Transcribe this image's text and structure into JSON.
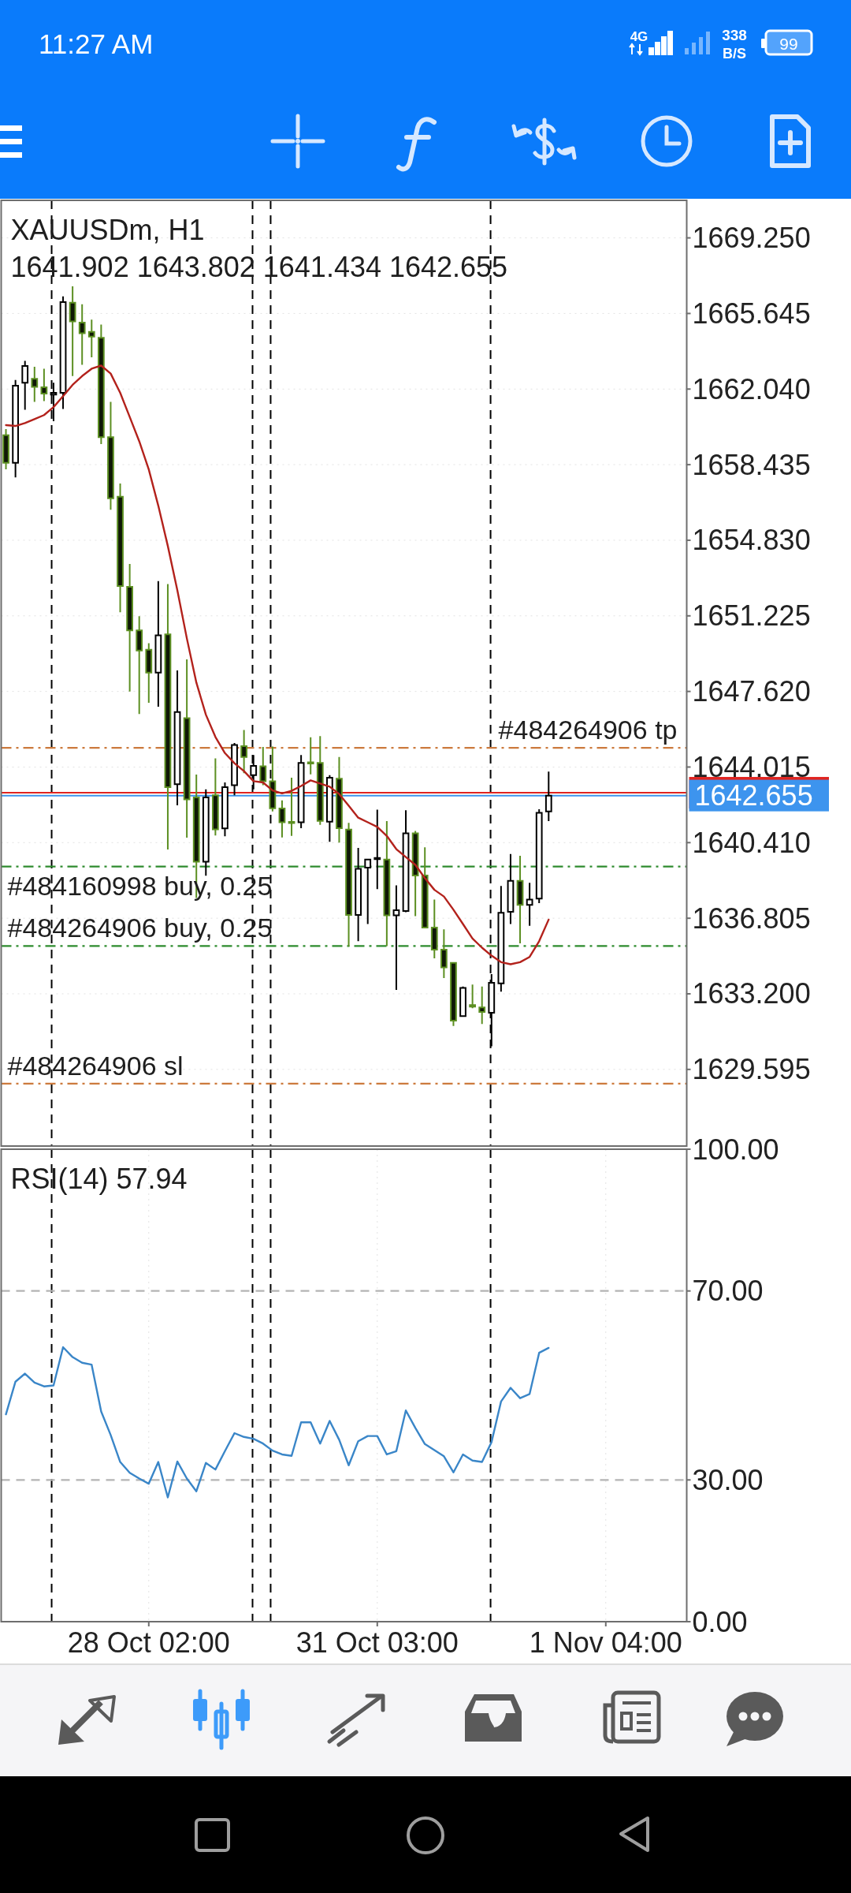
{
  "chart_data": [
    {
      "type": "other",
      "annotations": [
        "11:27 AM",
        "4G",
        "338",
        "B/S",
        "99"
      ]
    },
    {
      "type": "candlestick",
      "title": "XAUUSDm, H1",
      "subtitle": "1641.902 1643.802 1641.434 1642.655",
      "categories": [
        null,
        null,
        null,
        null,
        null,
        null,
        null,
        null,
        null,
        null,
        null,
        null,
        null,
        null,
        null,
        null,
        null,
        null,
        null,
        null,
        null,
        null,
        null,
        null,
        null,
        null,
        null,
        null,
        null,
        null,
        null,
        null,
        null,
        null,
        null,
        null,
        null,
        null,
        null,
        null,
        null,
        null,
        null,
        null,
        null,
        null,
        null,
        null,
        null,
        null,
        null,
        null,
        null,
        null,
        null,
        null,
        null,
        null,
        null,
        null,
        null,
        null,
        null,
        null,
        null,
        null,
        null,
        null,
        null,
        null,
        null,
        null
      ],
      "ohlc": [
        [
          1659.84,
          1660.13,
          1658.21,
          1658.52
        ],
        [
          1658.52,
          1662.47,
          1657.83,
          1662.2
        ],
        [
          1662.34,
          1663.39,
          1661.05,
          1663.14
        ],
        [
          1662.53,
          1663.1,
          1661.43,
          1662.14
        ],
        [
          1662.13,
          1663.01,
          1661.47,
          1661.82
        ],
        [
          1661.78,
          1662.34,
          1660.51,
          1661.86
        ],
        [
          1661.86,
          1666.46,
          1661.09,
          1666.19
        ],
        [
          1666.16,
          1666.94,
          1662.66,
          1665.27
        ],
        [
          1665.21,
          1666.08,
          1663.2,
          1664.7
        ],
        [
          1664.77,
          1665.35,
          1663.55,
          1664.54
        ],
        [
          1664.49,
          1665.12,
          1659.42,
          1659.75
        ],
        [
          1659.75,
          1661.43,
          1656.29,
          1656.83
        ],
        [
          1656.91,
          1657.54,
          1651.4,
          1652.65
        ],
        [
          1652.61,
          1653.7,
          1647.62,
          1650.53
        ],
        [
          1650.53,
          1651.21,
          1646.54,
          1649.57
        ],
        [
          1649.61,
          1649.92,
          1647.08,
          1648.52
        ],
        [
          1648.52,
          1652.88,
          1646.89,
          1650.3
        ],
        [
          1650.34,
          1652.74,
          1640.08,
          1643.05
        ],
        [
          1643.2,
          1648.62,
          1642.19,
          1646.64
        ],
        [
          1646.35,
          1649.15,
          1640.65,
          1642.47
        ],
        [
          1642.57,
          1643.66,
          1637.77,
          1639.5
        ],
        [
          1639.5,
          1642.95,
          1638.83,
          1642.57
        ],
        [
          1642.67,
          1644.43,
          1640.75,
          1641.04
        ],
        [
          1641.09,
          1643.28,
          1640.71,
          1643.05
        ],
        [
          1643.15,
          1645.16,
          1642.67,
          1645.07
        ],
        [
          1645.01,
          1645.78,
          1643.72,
          1644.49
        ],
        [
          1643.63,
          1644.59,
          1642.95,
          1644.07
        ],
        [
          1644.05,
          1644.97,
          1643.15,
          1643.34
        ],
        [
          1643.34,
          1644.99,
          1641.9,
          1642.05
        ],
        [
          1642.04,
          1642.42,
          1640.66,
          1641.38
        ],
        [
          1641.4,
          1643.51,
          1640.73,
          1641.35
        ],
        [
          1641.38,
          1644.59,
          1641.1,
          1644.21
        ],
        [
          1644.24,
          1645.43,
          1643.67,
          1644.19
        ],
        [
          1644.21,
          1645.49,
          1641.26,
          1641.45
        ],
        [
          1641.41,
          1643.63,
          1640.45,
          1643.51
        ],
        [
          1643.46,
          1644.49,
          1640.41,
          1641.1
        ],
        [
          1641.03,
          1641.35,
          1635.46,
          1636.96
        ],
        [
          1636.96,
          1640.16,
          1635.71,
          1639.16
        ],
        [
          1639.22,
          1639.62,
          1636.53,
          1639.6
        ],
        [
          1639.63,
          1641.98,
          1638.19,
          1639.68
        ],
        [
          1639.6,
          1641.44,
          1635.48,
          1636.94
        ],
        [
          1636.94,
          1638.37,
          1633.39,
          1637.19
        ],
        [
          1637.15,
          1641.95,
          1637.09,
          1640.85
        ],
        [
          1640.85,
          1640.97,
          1636.9,
          1638.84
        ],
        [
          1638.84,
          1640.19,
          1636.34,
          1636.36
        ],
        [
          1636.36,
          1637.69,
          1634.89,
          1635.31
        ],
        [
          1635.31,
          1636.27,
          1633.95,
          1634.46
        ],
        [
          1634.68,
          1634.71,
          1631.67,
          1631.92
        ],
        [
          1632.14,
          1633.55,
          1632.1,
          1633.48
        ],
        [
          1632.66,
          1633.64,
          1632.51,
          1632.59
        ],
        [
          1632.55,
          1633.55,
          1631.76,
          1632.33
        ],
        [
          1632.3,
          1634.14,
          1630.7,
          1633.73
        ],
        [
          1633.7,
          1638.34,
          1633.3,
          1637.06
        ],
        [
          1637.11,
          1639.87,
          1636.53,
          1638.59
        ],
        [
          1638.59,
          1639.78,
          1635.61,
          1637.44
        ],
        [
          1637.44,
          1638.49,
          1636.44,
          1637.69
        ],
        [
          1637.74,
          1642.0,
          1637.53,
          1641.83
        ],
        [
          1641.902,
          1643.802,
          1641.434,
          1642.655
        ],
        null,
        null,
        null,
        null,
        null,
        null,
        null,
        null,
        null,
        null,
        null,
        null,
        null,
        null
      ],
      "colors": [
        "#5c8f22",
        "#000000",
        "#000000",
        "#5c8f22",
        "#5c8f22",
        "#000000",
        "#000000",
        "#5c8f22",
        "#5c8f22",
        "#5c8f22",
        "#5c8f22",
        "#5c8f22",
        "#5c8f22",
        "#5c8f22",
        "#5c8f22",
        "#5c8f22",
        "#000000",
        "#5c8f22",
        "#000000",
        "#5c8f22",
        "#5c8f22",
        "#000000",
        "#5c8f22",
        "#000000",
        "#000000",
        "#5c8f22",
        "#000000",
        "#5c8f22",
        "#5c8f22",
        "#5c8f22",
        "#5c8f22",
        "#000000",
        "#5c8f22",
        "#5c8f22",
        "#000000",
        "#5c8f22",
        "#5c8f22",
        "#000000",
        "#000000",
        "#000000",
        "#5c8f22",
        "#000000",
        "#000000",
        "#5c8f22",
        "#5c8f22",
        "#5c8f22",
        "#5c8f22",
        "#5c8f22",
        "#000000",
        "#5c8f22",
        "#5c8f22",
        "#000000",
        "#000000",
        "#000000",
        "#5c8f22",
        "#000000",
        "#000000",
        "#000000",
        null,
        null,
        null,
        null,
        null,
        null,
        null,
        null,
        null,
        null,
        null,
        null,
        null,
        null
      ],
      "series": [
        {
          "type": "line",
          "color": "#b3221c",
          "values": [
            1660.32,
            1660.28,
            1660.42,
            1660.61,
            1660.8,
            1661.18,
            1661.7,
            1662.24,
            1662.66,
            1663.01,
            1663.16,
            1662.78,
            1661.86,
            1660.71,
            1659.55,
            1658.21,
            1656.48,
            1654.56,
            1652.45,
            1650.15,
            1648.04,
            1646.51,
            1645.45,
            1644.68,
            1644.2,
            1643.82,
            1643.34,
            1643.28,
            1642.9,
            1642.76,
            1642.88,
            1643.11,
            1643.38,
            1643.23,
            1643.08,
            1642.73,
            1642.17,
            1641.6,
            1641.38,
            1641.16,
            1640.73,
            1640.1,
            1639.72,
            1639.35,
            1638.72,
            1638.16,
            1637.84,
            1637.21,
            1636.53,
            1635.84,
            1635.4,
            1635.02,
            1634.71,
            1634.61,
            1634.71,
            1634.96,
            1635.71,
            1636.74,
            null,
            null,
            null,
            null,
            null,
            null,
            null,
            null,
            null,
            null,
            null,
            null,
            null,
            null
          ]
        }
      ],
      "ylim": [
        1625.94,
        1671.04
      ],
      "yticks": [
        {
          "value": 1669.25,
          "label": "1669.250"
        },
        1665.645,
        {
          "value": 1662.04,
          "label": "1662.040"
        },
        1658.435,
        {
          "value": 1654.83,
          "label": "1654.830"
        },
        1651.225,
        {
          "value": 1647.62,
          "label": "1647.620"
        },
        1644.015,
        {
          "value": 1640.41,
          "label": "1640.410"
        },
        1636.805,
        {
          "value": 1633.2,
          "label": "1633.200"
        },
        1629.595
      ],
      "grid": true,
      "ref_lines": [
        {
          "axis": "y",
          "value": 1644.93,
          "label": "#484264906 tp",
          "color": "#cc7a3d",
          "line_style": "dotted"
        },
        {
          "axis": "y",
          "value": 1642.79,
          "color": "#e0241f"
        },
        {
          "axis": "y",
          "value": 1642.655,
          "label": "1642.655",
          "color": "#3d94ee"
        },
        {
          "axis": "y",
          "value": 1639.27,
          "label": "#484160998 buy, 0.25",
          "color": "#2e8b2e",
          "line_style": "dotted"
        },
        {
          "axis": "y",
          "value": 1635.48,
          "label": "#484264906 buy, 0.25",
          "color": "#2e8b2e",
          "line_style": "dotted"
        },
        {
          "axis": "y",
          "value": 1628.92,
          "label": "#484264906 sl",
          "color": "#cc7a3d",
          "line_style": "dotted"
        }
      ]
    },
    {
      "type": "line",
      "title": "RSI(14) 57.94",
      "categories": [
        null,
        null,
        null,
        null,
        null,
        null,
        null,
        null,
        null,
        null,
        null,
        null,
        null,
        null,
        null,
        "28 Oct 02:00",
        null,
        null,
        null,
        null,
        null,
        null,
        null,
        null,
        null,
        null,
        null,
        null,
        null,
        null,
        null,
        null,
        null,
        null,
        null,
        null,
        null,
        null,
        null,
        "31 Oct 03:00",
        null,
        null,
        null,
        null,
        null,
        null,
        null,
        null,
        null,
        null,
        null,
        null,
        null,
        null,
        null,
        null,
        null,
        null,
        null,
        null,
        null,
        null,
        null,
        "1 Nov 04:00",
        null,
        null,
        null,
        null,
        null,
        null,
        null,
        null
      ],
      "series": [
        {
          "color": "#3a86c8",
          "values": [
            43.9,
            50.8,
            52.5,
            50.6,
            49.8,
            50.0,
            58.1,
            56.0,
            54.8,
            54.4,
            44.5,
            39.5,
            33.8,
            31.5,
            30.3,
            29.2,
            33.8,
            26.3,
            33.9,
            30.3,
            27.6,
            33.6,
            32.2,
            36.1,
            39.9,
            39.1,
            38.7,
            37.7,
            36.2,
            35.4,
            35.1,
            42.2,
            42.2,
            37.7,
            42.5,
            38.5,
            33.1,
            38.2,
            39.3,
            39.3,
            35.4,
            36.1,
            44.7,
            41.0,
            37.6,
            36.3,
            35.0,
            31.6,
            35.4,
            34.1,
            33.8,
            38.0,
            46.6,
            49.5,
            47.3,
            48.2,
            56.9,
            57.94,
            null,
            null,
            null,
            null,
            null,
            null,
            null,
            null,
            null,
            null,
            null,
            null,
            null,
            null
          ]
        }
      ],
      "ylim": [
        0,
        100
      ],
      "yticks": [
        {
          "value": 100,
          "label": "100.00"
        },
        {
          "value": 70,
          "label": "70.00"
        },
        {
          "value": 30,
          "label": "30.00"
        },
        {
          "value": 0,
          "label": "0.00"
        }
      ],
      "grid": "x",
      "ref_lines": [
        {
          "axis": "y",
          "value": 70,
          "color": "#b4b4b4",
          "line_style": "dashed"
        },
        {
          "axis": "y",
          "value": 30,
          "color": "#b4b4b4",
          "line_style": "dashed"
        }
      ]
    }
  ]
}
